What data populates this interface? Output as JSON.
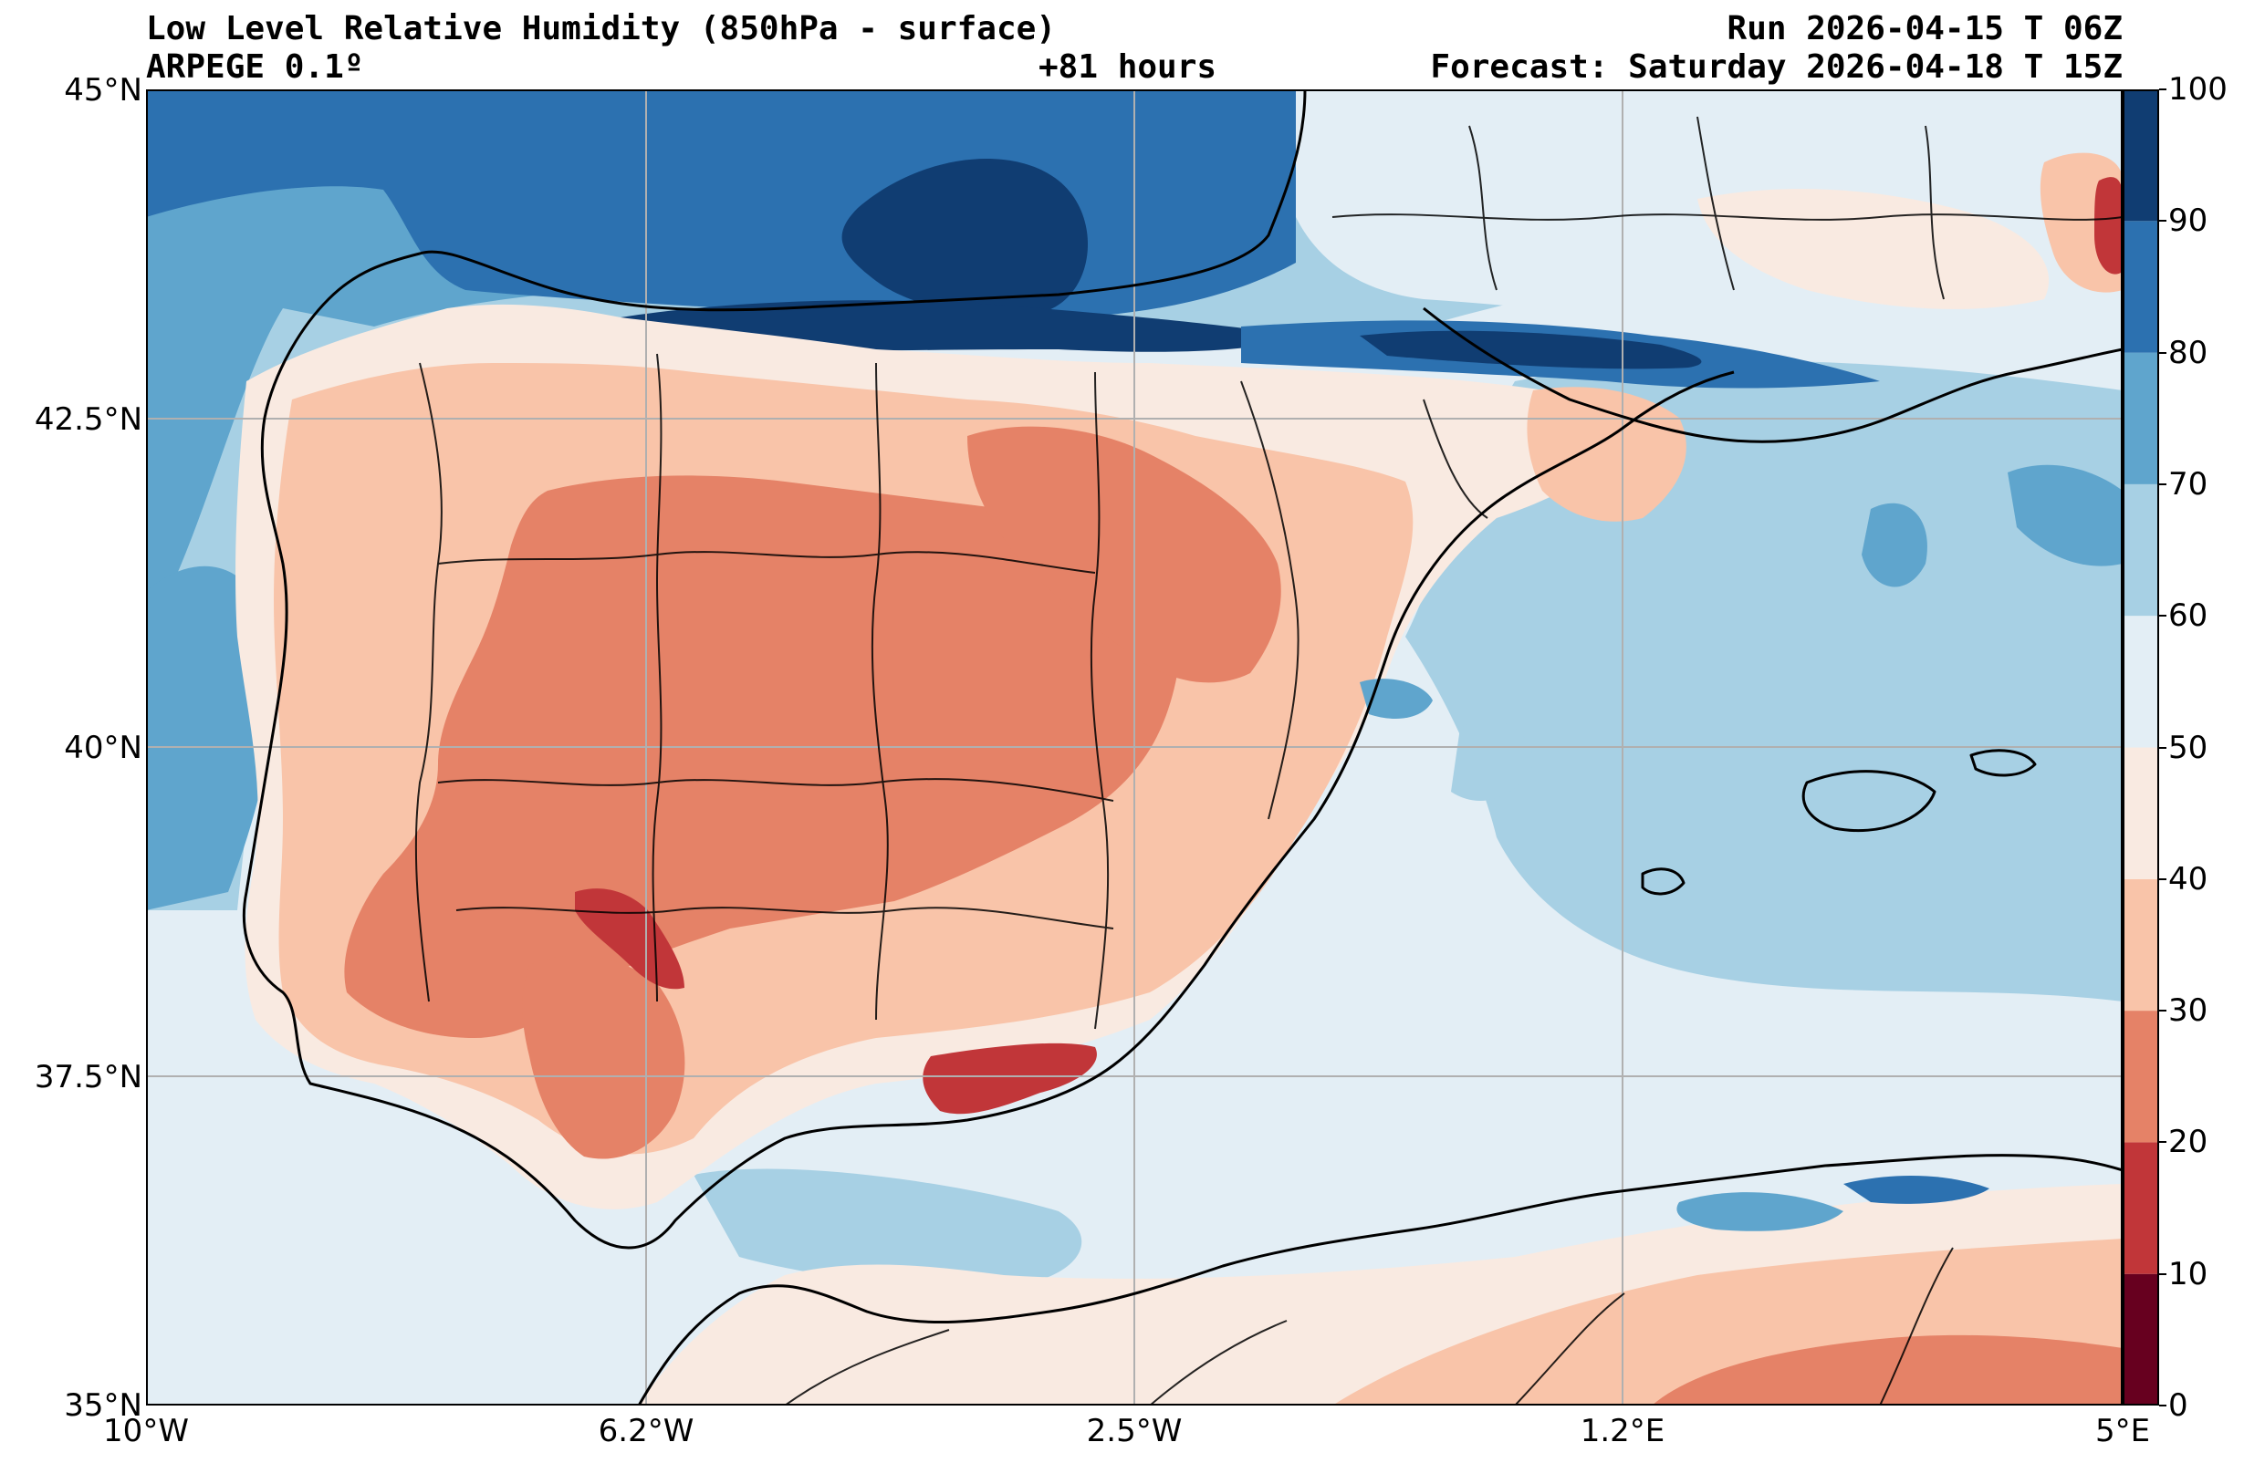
{
  "header": {
    "title": "Low Level Relative Humidity (850hPa - surface)",
    "model": "ARPEGE 0.1º",
    "lead_time": "+81 hours",
    "run": "Run 2026-04-15 T 06Z",
    "forecast": "Forecast: Saturday 2026-04-18 T 15Z"
  },
  "axes": {
    "lat_labels": [
      "45°N",
      "42.5°N",
      "40°N",
      "37.5°N",
      "35°N"
    ],
    "lon_labels": [
      "10°W",
      "6.2°W",
      "2.5°W",
      "1.2°E",
      "5°E"
    ]
  },
  "map_extent": {
    "lon_min": -10,
    "lon_max": 5,
    "lat_min": 35,
    "lat_max": 45
  },
  "colorbar": {
    "ticks": [
      "0",
      "10",
      "20",
      "30",
      "40",
      "50",
      "60",
      "70",
      "80",
      "90",
      "100"
    ],
    "levels": [
      0,
      10,
      20,
      30,
      40,
      50,
      60,
      70,
      80,
      90,
      100
    ],
    "colors": [
      "#67001f",
      "#c13639",
      "#e58267",
      "#f9c4a9",
      "#f9eae1",
      "#e3eef5",
      "#a7d0e4",
      "#5fa5cd",
      "#2c71b0",
      "#103d72"
    ]
  }
}
